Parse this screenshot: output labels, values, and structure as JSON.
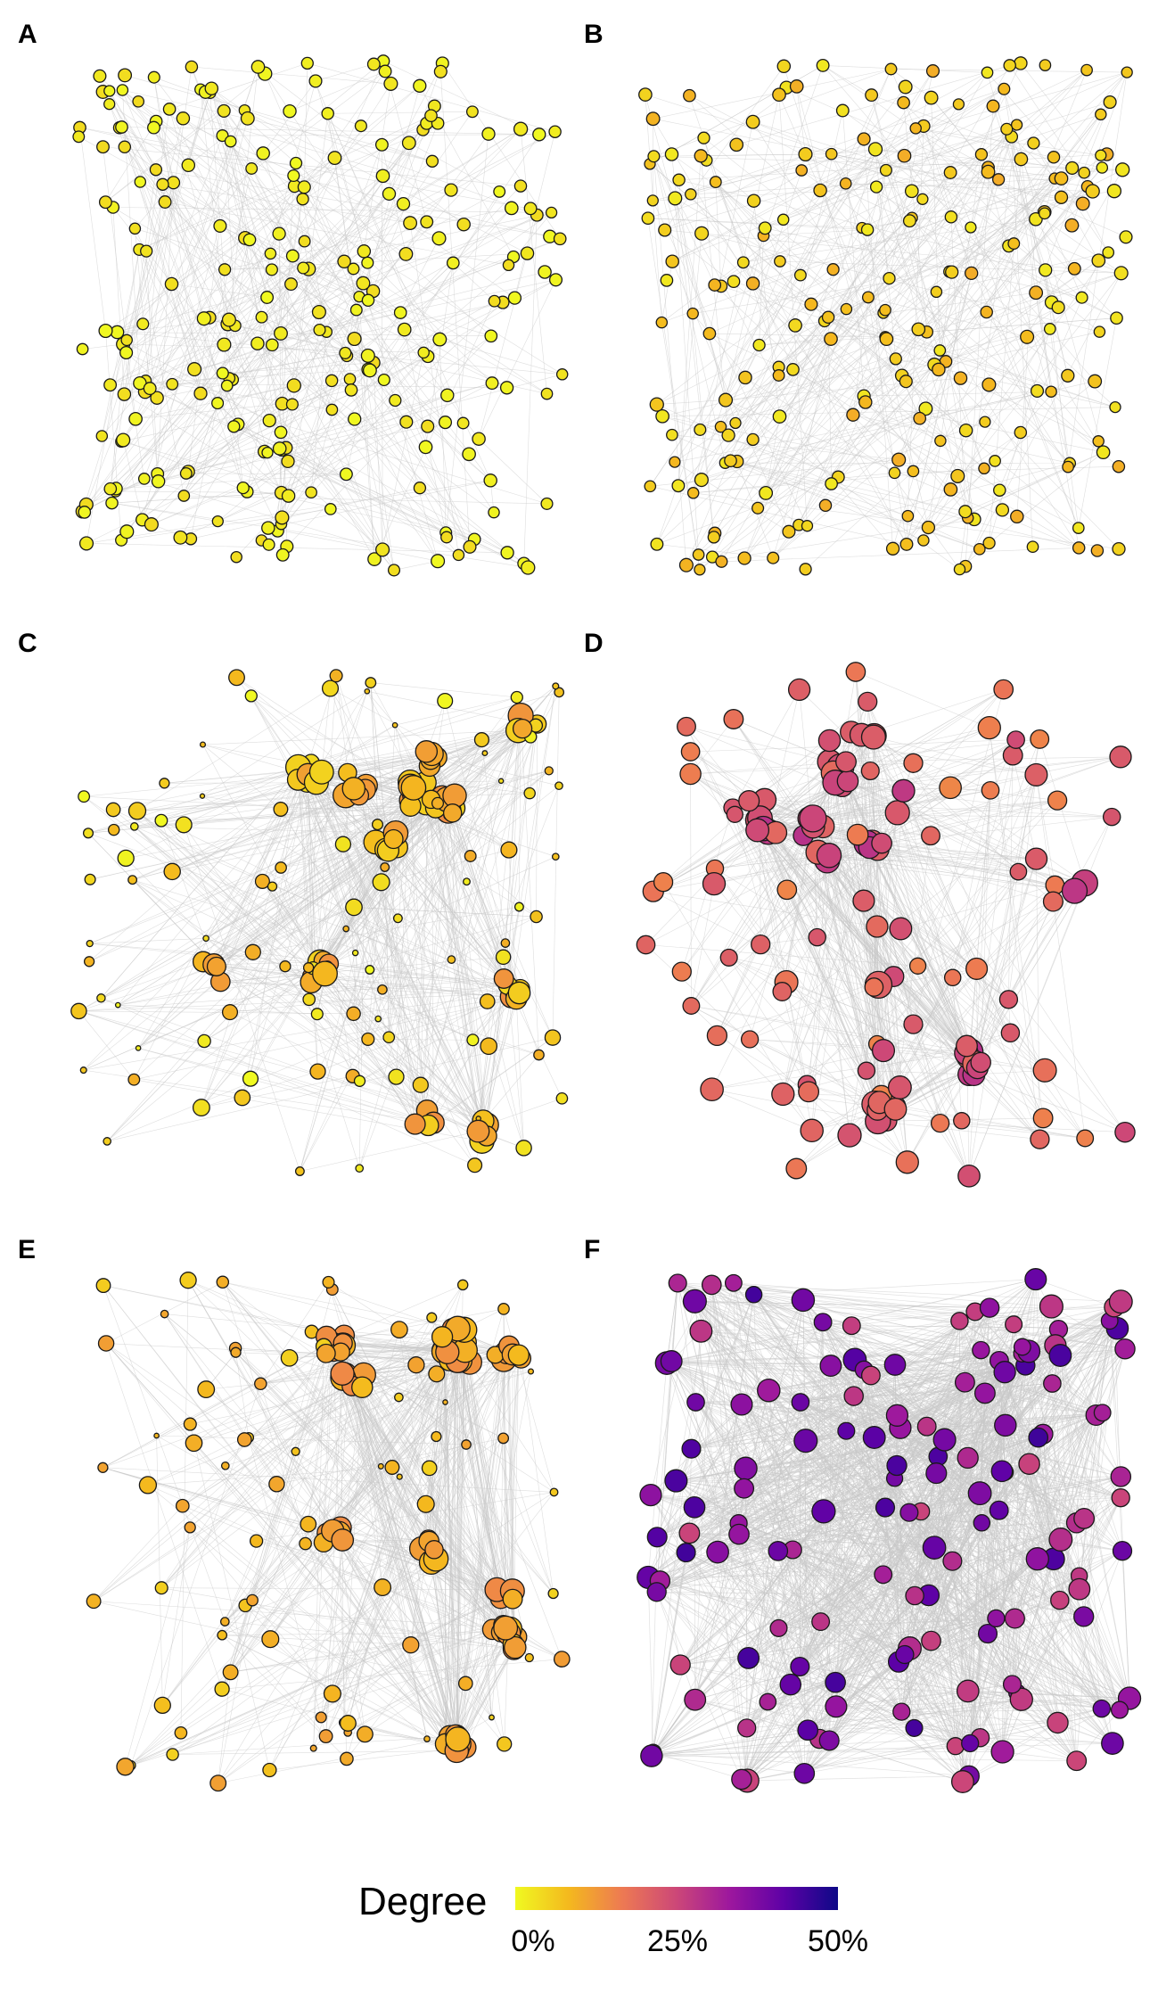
{
  "panels": [
    {
      "label": "A",
      "type": "random-uniform",
      "node_count": 260,
      "seed": 11,
      "size_mode": "uniform",
      "degree_range": [
        0.0,
        0.04
      ]
    },
    {
      "label": "B",
      "type": "random-uniform",
      "node_count": 240,
      "seed": 23,
      "size_mode": "uniform",
      "degree_range": [
        0.02,
        0.1
      ]
    },
    {
      "label": "C",
      "type": "clustered",
      "node_count": 180,
      "seed": 37,
      "size_mode": "varied",
      "degree_range": [
        0.0,
        0.1
      ]
    },
    {
      "label": "D",
      "type": "clustered",
      "node_count": 130,
      "seed": 41,
      "size_mode": "large",
      "degree_range": [
        0.15,
        0.25
      ]
    },
    {
      "label": "E",
      "type": "clustered",
      "node_count": 170,
      "seed": 53,
      "size_mode": "varied",
      "degree_range": [
        0.05,
        0.12
      ]
    },
    {
      "label": "F",
      "type": "dense",
      "node_count": 150,
      "seed": 67,
      "size_mode": "large",
      "degree_range": [
        0.25,
        0.45
      ]
    }
  ],
  "legend": {
    "title": "Degree",
    "ticks": [
      "0%",
      "25%",
      "50%"
    ],
    "colormap": [
      "#f0f921",
      "#f4b81e",
      "#ed7953",
      "#cc4778",
      "#9c179e",
      "#5d01a6",
      "#0d0887"
    ]
  },
  "style": {
    "edge_color": "#c8c8c8",
    "node_stroke": "#1a1a1a"
  }
}
